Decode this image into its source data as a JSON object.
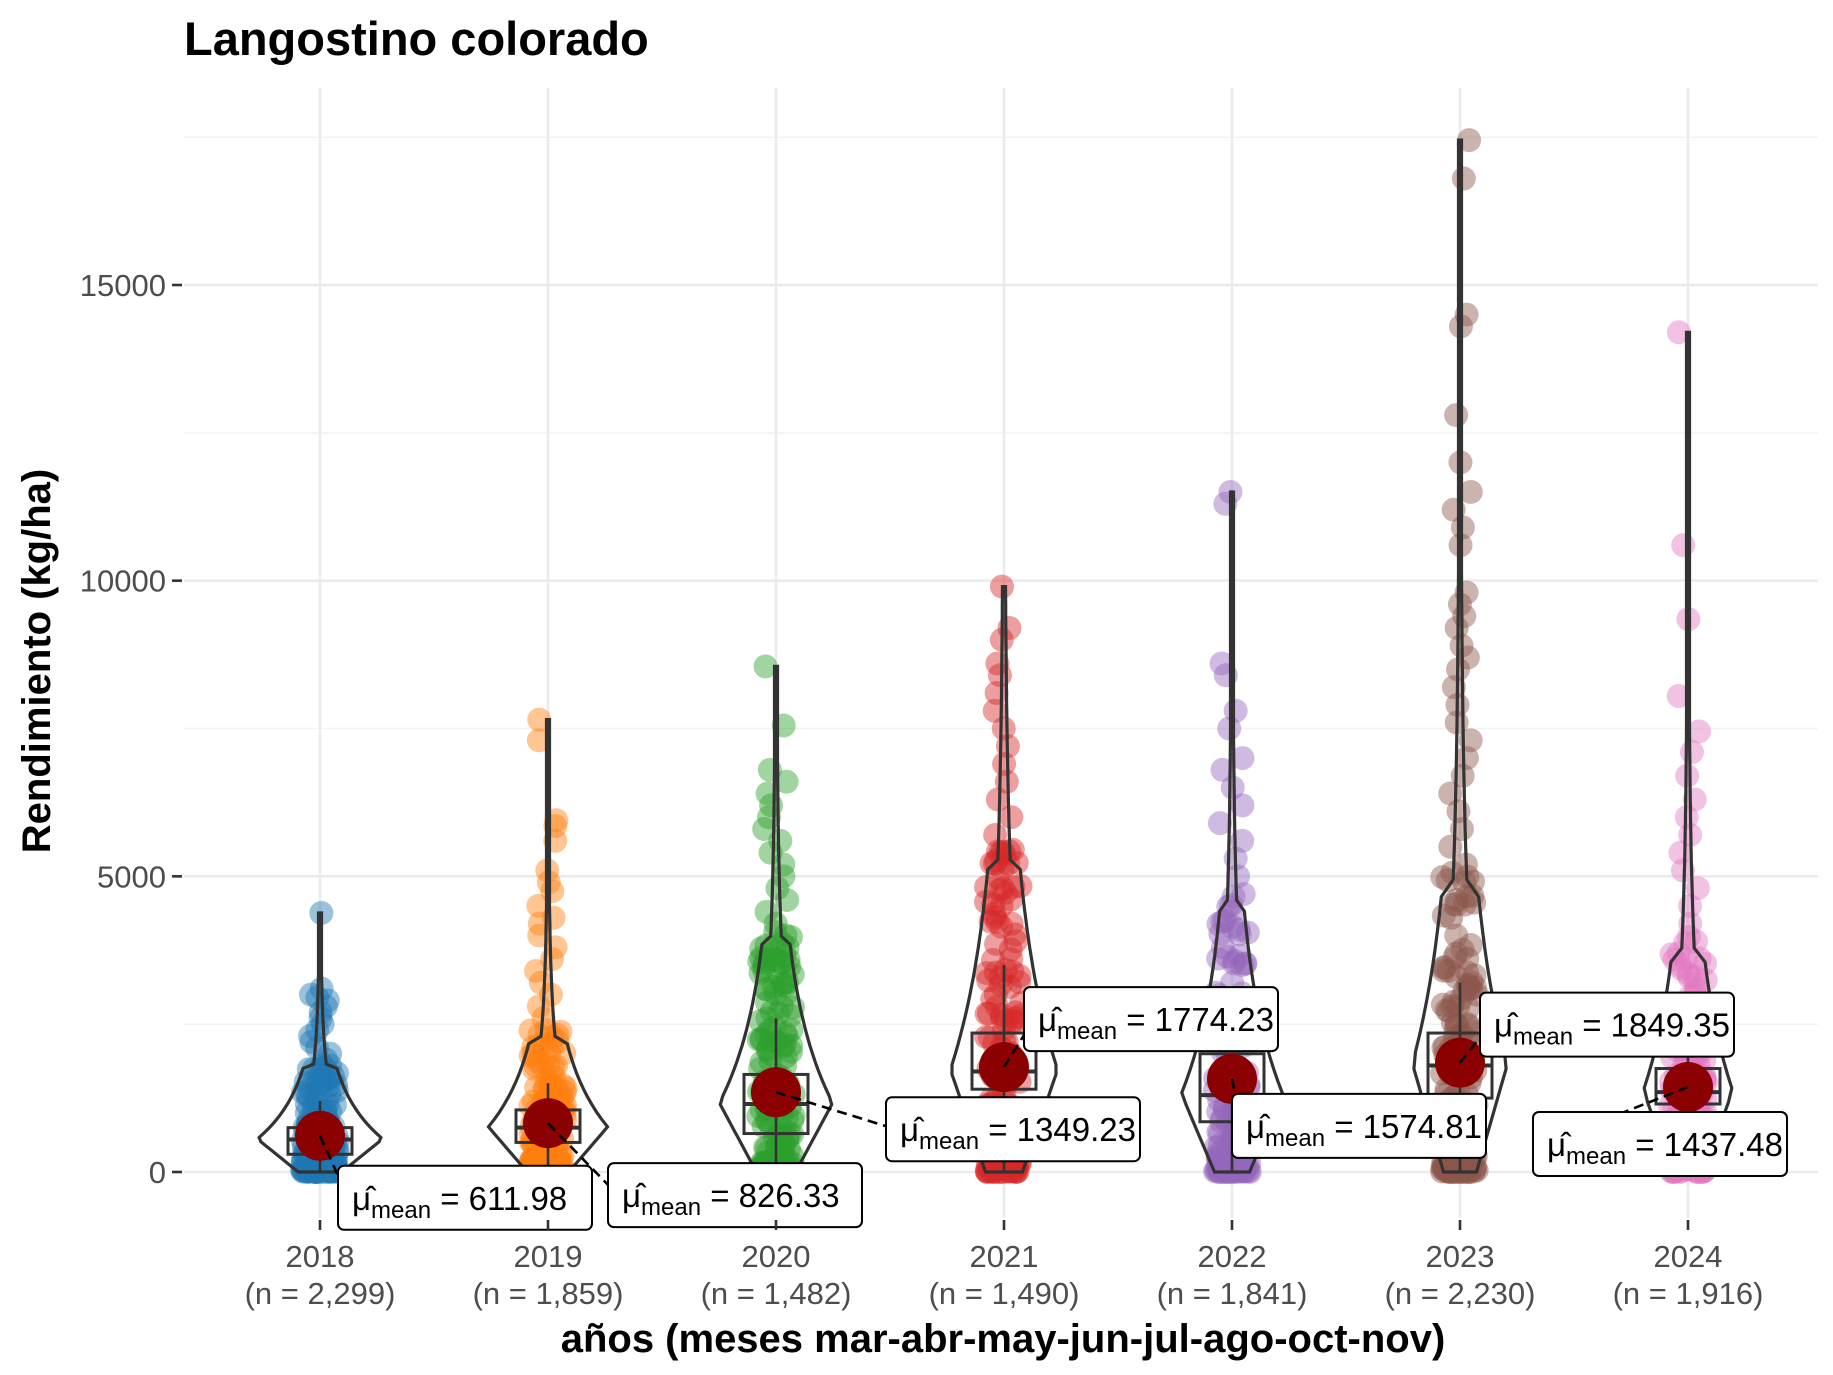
{
  "chart_data": {
    "type": "violin",
    "title": "Langostino colorado",
    "xlabel": "años (meses mar-abr-may-jun-jul-ago-oct-nov)",
    "ylabel": "Rendimiento (kg/ha)",
    "ylim": [
      -800,
      17600
    ],
    "y_ticks": [
      0,
      5000,
      10000,
      15000
    ],
    "y_tick_labels": [
      "0",
      "5000",
      "10000",
      "15000"
    ],
    "grid": true,
    "legend": "none",
    "categories": [
      "2018",
      "2019",
      "2020",
      "2021",
      "2022",
      "2023",
      "2024"
    ],
    "series": [
      {
        "category": "2018",
        "tick_label_line2": "(n = 2,299)",
        "n": 2299,
        "color": "#1f77b4",
        "mean": 611.98,
        "mean_label": "611.98",
        "box": [
          0,
          300,
          550,
          750,
          1200
        ],
        "max": 4380,
        "points": [
          4380,
          3100,
          3000,
          2950,
          2900,
          2800,
          2700,
          2600,
          2500,
          2400,
          2300,
          2200,
          2100,
          2000,
          1900,
          1800,
          1700,
          1600,
          1500,
          1400,
          1300,
          1200,
          1100,
          1000,
          900,
          800,
          700,
          600,
          500,
          400,
          300,
          200,
          100,
          50,
          0
        ]
      },
      {
        "category": "2019",
        "tick_label_line2": "(n = 1,859)",
        "n": 1859,
        "color": "#ff7f0e",
        "mean": 826.33,
        "mean_label": "826.33",
        "box": [
          0,
          500,
          750,
          1050,
          1500
        ],
        "max": 7650,
        "points": [
          7650,
          7300,
          5950,
          5850,
          5600,
          5100,
          4900,
          4750,
          4500,
          4300,
          4200,
          4000,
          3800,
          3600,
          3400,
          3200,
          3000,
          2800,
          2600,
          2400,
          2200,
          2000,
          1800,
          1600,
          1400,
          1200,
          1000,
          800,
          600,
          400,
          200,
          0
        ]
      },
      {
        "category": "2020",
        "tick_label_line2": "(n = 1,482)",
        "n": 1482,
        "color": "#2ca02c",
        "mean": 1349.23,
        "mean_label": "1349.23",
        "box": [
          0,
          650,
          1150,
          1650,
          2600
        ],
        "max": 8550,
        "points": [
          8550,
          7550,
          6800,
          6600,
          6400,
          6200,
          6000,
          5800,
          5600,
          5400,
          5200,
          5000,
          4800,
          4600,
          4400,
          4200,
          4000,
          3800,
          3600,
          3400,
          3200,
          3000,
          2800,
          2600,
          2400,
          2200,
          2000,
          1800,
          1600,
          1400,
          1200,
          1000,
          800,
          600,
          400,
          200,
          0
        ]
      },
      {
        "category": "2021",
        "tick_label_line2": "(n = 1,490)",
        "n": 1490,
        "color": "#d62728",
        "mean": 1774.23,
        "mean_label": "1774.23",
        "box": [
          0,
          1400,
          1700,
          2350,
          3500
        ],
        "max": 9900,
        "points": [
          9900,
          9200,
          9000,
          8600,
          8400,
          8100,
          7800,
          7500,
          7200,
          6900,
          6600,
          6300,
          6000,
          5700,
          5400,
          5100,
          4800,
          4500,
          4200,
          3900,
          3600,
          3300,
          3000,
          2700,
          2400,
          2100,
          1800,
          1500,
          1200,
          900,
          600,
          300,
          0
        ]
      },
      {
        "category": "2022",
        "tick_label_line2": "(n = 1,841)",
        "n": 1841,
        "color": "#9467bd",
        "mean": 1574.81,
        "mean_label": "1574.81",
        "box": [
          0,
          850,
          1300,
          2000,
          3000
        ],
        "max": 11500,
        "points": [
          11500,
          11300,
          8600,
          8400,
          7800,
          7500,
          7000,
          6800,
          6500,
          6200,
          5900,
          5600,
          5300,
          5000,
          4700,
          4400,
          4100,
          3800,
          3500,
          3200,
          2900,
          2600,
          2300,
          2000,
          1700,
          1400,
          1100,
          800,
          500,
          200,
          0
        ]
      },
      {
        "category": "2023",
        "tick_label_line2": "(n = 2,230)",
        "n": 2230,
        "color": "#8c564b",
        "mean": 1849.35,
        "mean_label": "1849.35",
        "box": [
          0,
          1250,
          1800,
          2350,
          3200
        ],
        "max": 17450,
        "points": [
          17450,
          16800,
          14500,
          14300,
          12800,
          12000,
          11500,
          11200,
          10900,
          10600,
          9800,
          9600,
          9400,
          9200,
          8900,
          8700,
          8500,
          8200,
          7900,
          7600,
          7300,
          7000,
          6700,
          6400,
          6100,
          5800,
          5500,
          5200,
          4900,
          4600,
          4300,
          4000,
          3700,
          3400,
          3100,
          2800,
          2500,
          2200,
          1900,
          1600,
          1300,
          1000,
          700,
          400,
          100,
          0
        ]
      },
      {
        "category": "2024",
        "tick_label_line2": "(n = 1,916)",
        "n": 1916,
        "color": "#e377c2",
        "mean": 1437.48,
        "mean_label": "1437.48",
        "box": [
          0,
          1150,
          1350,
          1750,
          2500
        ],
        "max": 14200,
        "points": [
          14200,
          10600,
          9350,
          8050,
          7450,
          7100,
          6700,
          6300,
          6000,
          5700,
          5400,
          5100,
          4800,
          4500,
          4200,
          3900,
          3600,
          3300,
          3000,
          2700,
          2400,
          2100,
          1800,
          1500,
          1200,
          900,
          600,
          300,
          0
        ]
      }
    ]
  }
}
